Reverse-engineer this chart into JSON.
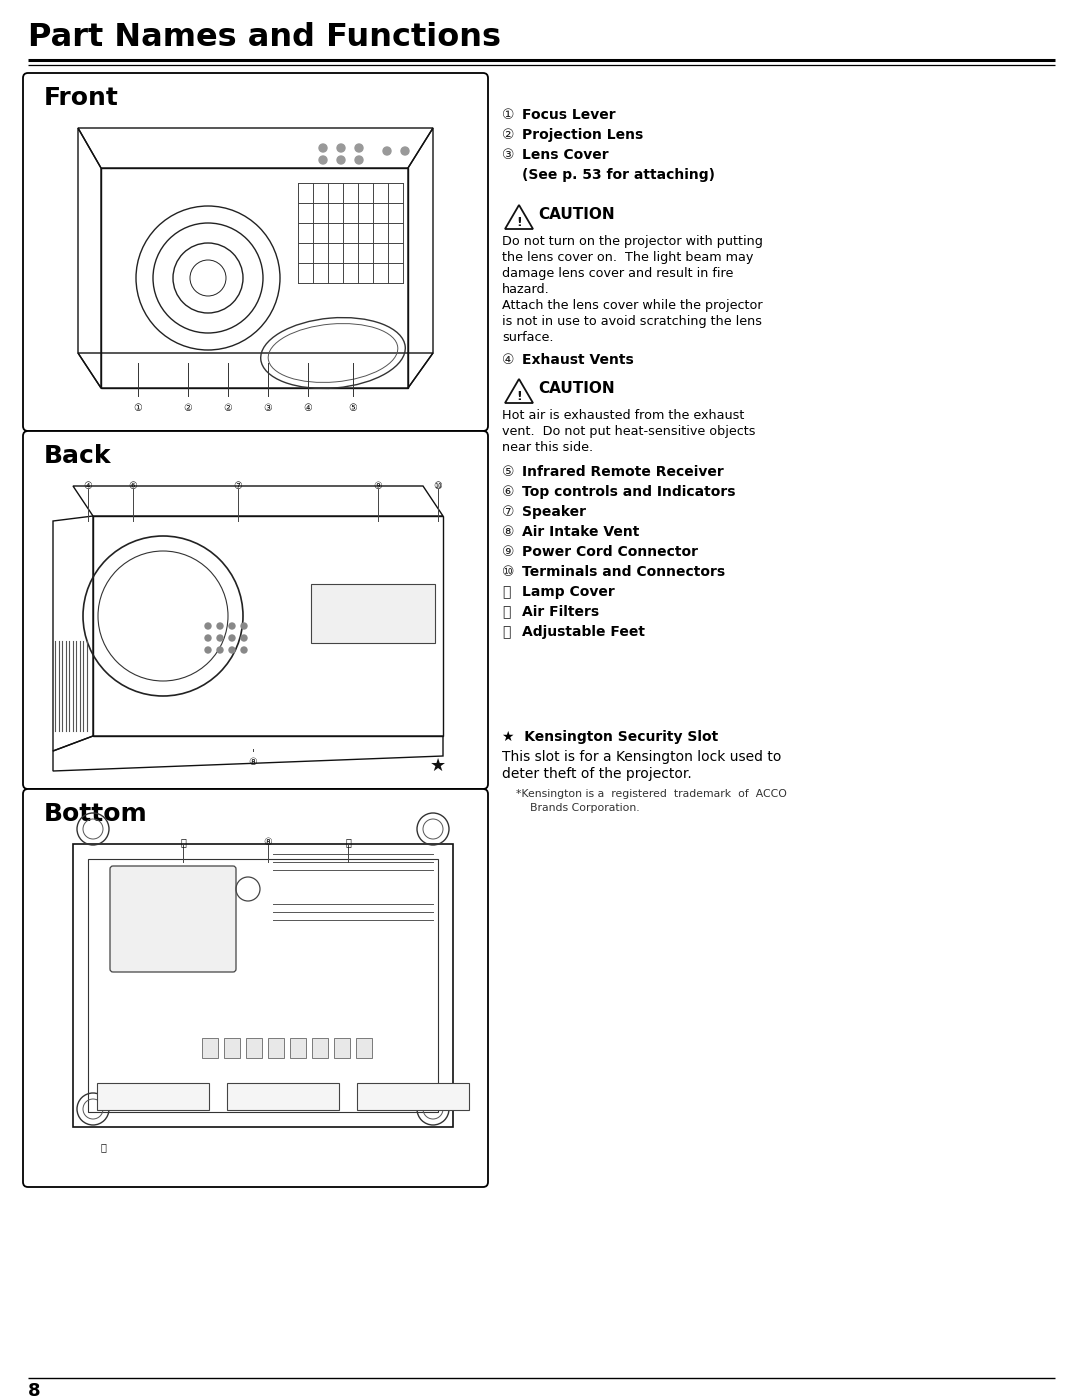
{
  "title": "Part Names and Functions",
  "page_num": "8",
  "bg_color": "#ffffff",
  "right_col": {
    "items_front": [
      [
        "①",
        "Focus Lever"
      ],
      [
        "②",
        "Projection Lens"
      ],
      [
        "③",
        "Lens Cover"
      ],
      [
        "",
        "(See p. 53 for attaching)"
      ]
    ],
    "caution1_text": [
      "Do not turn on the projector with putting",
      "the lens cover on.  The light beam may",
      "damage lens cover and result in fire",
      "hazard.",
      "Attach the lens cover while the projector",
      "is not in use to avoid scratching the lens",
      "surface."
    ],
    "item4": [
      "④",
      "Exhaust Vents"
    ],
    "caution2_text": [
      "Hot air is exhausted from the exhaust",
      "vent.  Do not put heat-sensitive objects",
      "near this side."
    ],
    "items_back": [
      [
        "⑤",
        "Infrared Remote Receiver"
      ],
      [
        "⑥",
        "Top controls and Indicators"
      ],
      [
        "⑦",
        "Speaker"
      ],
      [
        "⑧",
        "Air Intake Vent"
      ],
      [
        "⑨",
        "Power Cord Connector"
      ],
      [
        "⑩",
        "Terminals and Connectors"
      ],
      [
        "⑪",
        "Lamp Cover"
      ],
      [
        "⑫",
        "Air Filters"
      ],
      [
        "⑬",
        "Adjustable Feet"
      ]
    ],
    "kensington_title": "★  Kensington Security Slot",
    "kensington_text": [
      "This slot is for a Kensington lock used to",
      "deter theft of the projector."
    ],
    "kensington_note": [
      "*Kensington is a  registered  trademark  of  ACCO",
      "    Brands Corporation."
    ]
  }
}
